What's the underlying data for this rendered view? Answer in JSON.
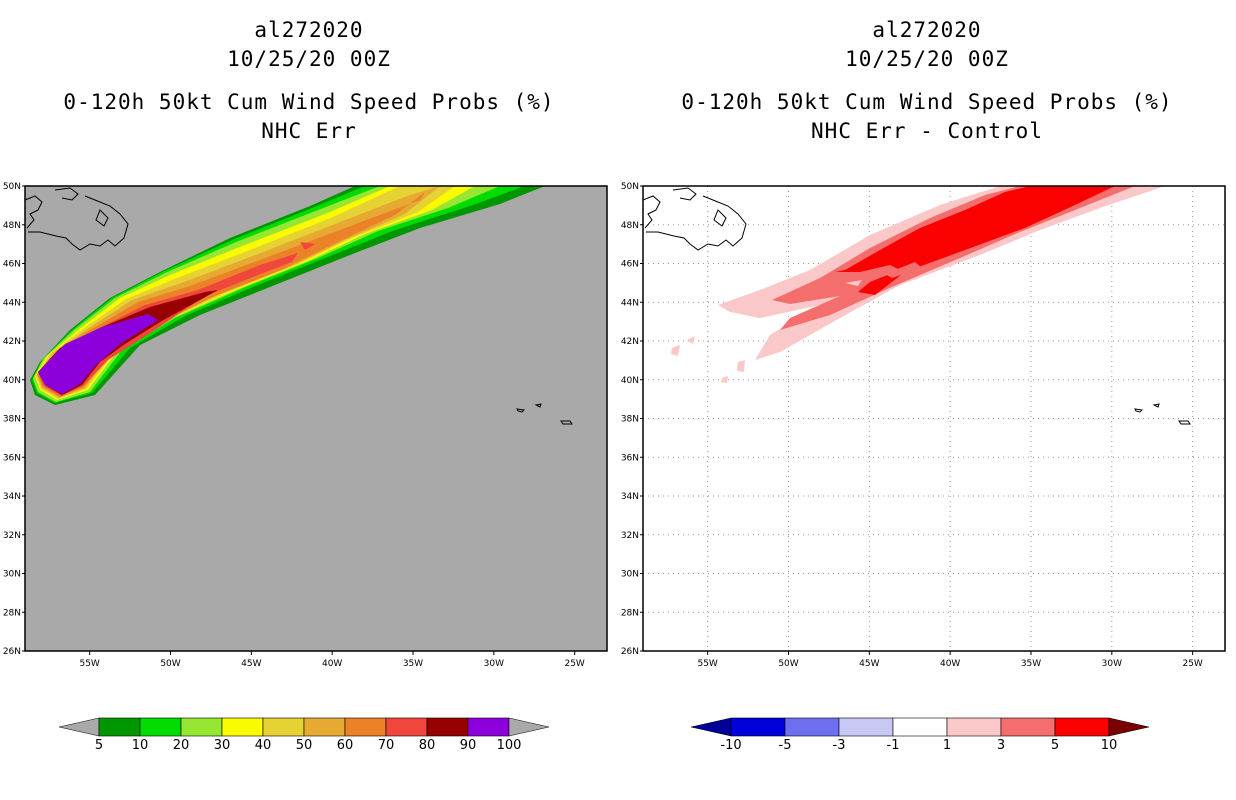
{
  "panels": [
    {
      "storm_id": "al272020",
      "datetime": "10/25/20 00Z",
      "product": "0-120h 50kt Cum Wind Speed Probs (%)",
      "subtitle": "NHC Err",
      "background_color": "#a9a9a9",
      "colorbar": {
        "labels": [
          "5",
          "10",
          "20",
          "30",
          "40",
          "50",
          "60",
          "70",
          "80",
          "90",
          "100"
        ],
        "colors": [
          "#009600",
          "#00dc00",
          "#96e632",
          "#fafa00",
          "#e6d232",
          "#e6aa32",
          "#eb8228",
          "#f0463c",
          "#960000",
          "#8c00dc"
        ],
        "under_color": "#a9a9a9",
        "over_color": "#a9a9a9"
      }
    },
    {
      "storm_id": "al272020",
      "datetime": "10/25/20 00Z",
      "product": "0-120h 50kt Cum Wind Speed Probs (%)",
      "subtitle": "NHC Err - Control",
      "background_color": "#ffffff",
      "colorbar": {
        "labels": [
          "-10",
          "-5",
          "-3",
          "-1",
          "1",
          "3",
          "5",
          "10"
        ],
        "colors": [
          "#0000dc",
          "#6e6ef0",
          "#c8c8f5",
          "#ffffff",
          "#fac8c8",
          "#f56e6e",
          "#fa0000"
        ],
        "under_color": "#000096",
        "over_color": "#780000"
      }
    }
  ],
  "chart_data": {
    "type": "heatmap",
    "xlim_lon": [
      -59,
      -23
    ],
    "ylim_lat": [
      26,
      50
    ],
    "x_tick_labels": [
      "55W",
      "50W",
      "45W",
      "40W",
      "35W",
      "30W",
      "25W"
    ],
    "x_tick_values": [
      -55,
      -50,
      -45,
      -40,
      -35,
      -30,
      -25
    ],
    "y_tick_labels": [
      "26N",
      "28N",
      "30N",
      "32N",
      "34N",
      "36N",
      "38N",
      "40N",
      "42N",
      "44N",
      "46N",
      "48N",
      "50N"
    ],
    "y_tick_values": [
      26,
      28,
      30,
      32,
      34,
      36,
      38,
      40,
      42,
      44,
      46,
      48,
      50
    ],
    "grid": "dotted (right panel)",
    "left_panel": {
      "field": "cumulative 50kt wind speed probability (%)",
      "max_region": "~100% near 57W-52W, 39N-43N",
      "swath_direction": "northeast toward 30W 50N"
    },
    "right_panel": {
      "field": "probability difference NHC Err - Control (%)",
      "max_difference": "5 to 10 near 45W-32W, 45N-50N"
    }
  }
}
